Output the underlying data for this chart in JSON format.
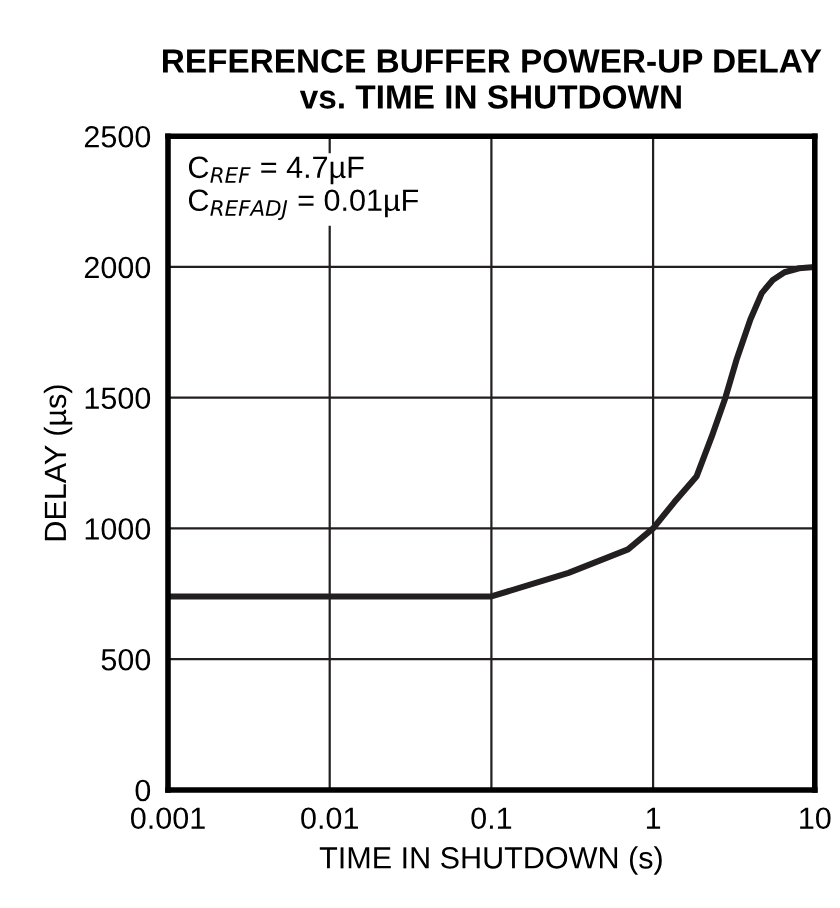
{
  "chart_data": {
    "type": "line",
    "title": "REFERENCE BUFFER POWER-UP DELAY\nvs. TIME IN SHUTDOWN",
    "xlabel": "TIME IN SHUTDOWN (s)",
    "ylabel": "DELAY (µs)",
    "annotations": [
      "C$_{REF}$ = 4.7µF\nC$_{REFADJ}$ = 0.01µF"
    ],
    "log": "x",
    "xlim": [
      0.001,
      10
    ],
    "xticks": [
      0.001,
      0.01,
      0.1,
      1,
      10
    ],
    "ylim": [
      0,
      2500
    ],
    "yticks": [
      0,
      500,
      1000,
      1500,
      2000,
      2500
    ],
    "grid": true,
    "series": [
      {
        "color": "#231f20",
        "x": [
          0.001,
          0.01,
          0.1,
          0.3,
          0.7,
          1,
          1.35,
          1.86,
          2.3,
          2.8,
          3.3,
          4,
          4.7,
          5.5,
          6.5,
          8,
          10
        ],
        "values": [
          740,
          740,
          740,
          830,
          920,
          1000,
          1100,
          1200,
          1350,
          1500,
          1650,
          1800,
          1900,
          1950,
          1980,
          1995,
          2000
        ]
      }
    ]
  }
}
